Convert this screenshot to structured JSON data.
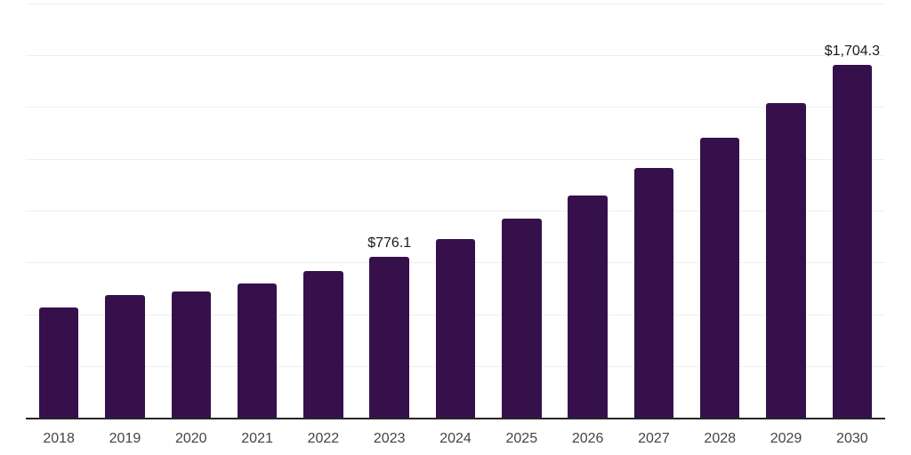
{
  "chart_data": {
    "type": "bar",
    "title": "",
    "xlabel": "",
    "ylabel": "",
    "categories": [
      "2018",
      "2019",
      "2020",
      "2021",
      "2022",
      "2023",
      "2024",
      "2025",
      "2026",
      "2027",
      "2028",
      "2029",
      "2030"
    ],
    "values": [
      535,
      593,
      612,
      650,
      710,
      776.1,
      863,
      960,
      1074,
      1205,
      1352,
      1520,
      1704.3
    ],
    "data_labels": [
      "",
      "",
      "",
      "",
      "",
      "$776.1",
      "",
      "",
      "",
      "",
      "",
      "",
      "$1,704.3"
    ],
    "ylim": [
      0,
      2000
    ],
    "grid_step": 250,
    "grid": "horizontal-only",
    "y_tick_labels_visible": false,
    "legend_position": "none",
    "colors": {
      "bar": "#36104B",
      "gridline": "#EFEFEF",
      "axis_line": "#262626",
      "tick_label": "#444444",
      "data_label": "#1A1A1A",
      "background": "#FFFFFF"
    }
  }
}
